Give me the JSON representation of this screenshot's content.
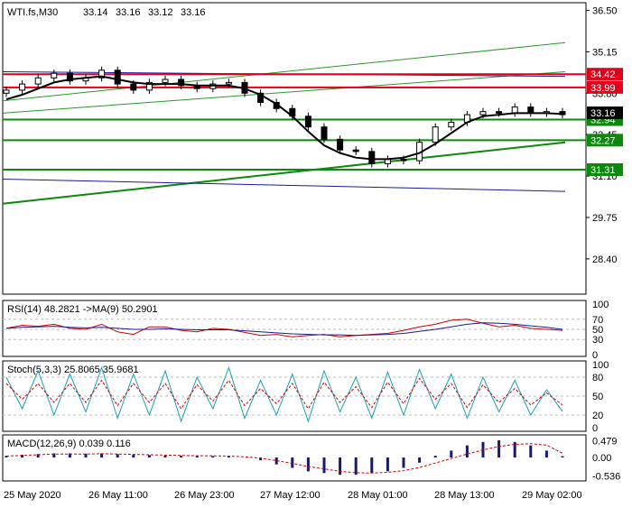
{
  "chart_data": {
    "type": "candlestick",
    "symbol": "WTI.fs",
    "timeframe": "M30",
    "ohlc_header": {
      "label": "WTI.fs,M30",
      "open": "33.14",
      "high": "33.16",
      "low": "33.12",
      "close": "33.16"
    },
    "x_ticks": [
      "25 May 2020",
      "26 May 11:00",
      "26 May 23:00",
      "27 May 12:00",
      "28 May 01:00",
      "28 May 13:00",
      "29 May 02:00"
    ],
    "price_axis": {
      "ticks": [
        "36.50",
        "35.15",
        "33.80",
        "32.45",
        "31.10",
        "29.75",
        "28.40"
      ],
      "tick_values": [
        36.5,
        35.15,
        33.8,
        32.45,
        31.1,
        29.75,
        28.4
      ],
      "ylim": [
        27.25,
        36.75
      ]
    },
    "levels": [
      {
        "value": 34.42,
        "label": "34.42",
        "color": "#e0001a"
      },
      {
        "value": 33.99,
        "label": "33.99",
        "color": "#e0001a"
      },
      {
        "value": 32.94,
        "label": "32.94",
        "color": "#0a8a0a"
      },
      {
        "value": 32.27,
        "label": "32.27",
        "color": "#0a8a0a"
      },
      {
        "value": 31.31,
        "label": "31.31",
        "color": "#0a8a0a"
      }
    ],
    "current_price": {
      "value": 33.16,
      "label": "33.16",
      "bg": "#000000"
    },
    "trend_lines": [
      {
        "x": [
          0,
          1
        ],
        "y": [
          33.55,
          35.45
        ],
        "color": "#2a9a2a",
        "width": 1
      },
      {
        "x": [
          0,
          1
        ],
        "y": [
          33.15,
          34.5
        ],
        "color": "#2a9a2a",
        "width": 1
      },
      {
        "x": [
          0,
          1
        ],
        "y": [
          30.2,
          32.2
        ],
        "color": "#0a8a0a",
        "width": 2
      },
      {
        "x": [
          0,
          1
        ],
        "y": [
          34.5,
          34.35
        ],
        "color": "#1a1a9a",
        "width": 1
      },
      {
        "x": [
          0,
          1
        ],
        "y": [
          31.0,
          30.6
        ],
        "color": "#1a1a9a",
        "width": 1
      }
    ],
    "close_series": [
      33.9,
      34.1,
      34.3,
      34.45,
      34.2,
      34.3,
      34.55,
      34.1,
      33.9,
      34.15,
      34.25,
      34.05,
      33.95,
      34.1,
      34.15,
      33.8,
      33.5,
      33.3,
      33.05,
      32.7,
      32.3,
      31.95,
      31.9,
      31.5,
      31.65,
      31.6,
      32.2,
      32.7,
      32.85,
      33.1,
      33.2,
      33.15,
      33.35,
      33.15,
      33.2,
      33.1
    ],
    "ma_series": [
      33.6,
      33.75,
      33.95,
      34.15,
      34.25,
      34.3,
      34.35,
      34.25,
      34.15,
      34.1,
      34.1,
      34.1,
      34.05,
      34.05,
      34.05,
      33.95,
      33.75,
      33.45,
      33.05,
      32.55,
      32.1,
      31.85,
      31.7,
      31.65,
      31.65,
      31.7,
      31.85,
      32.15,
      32.5,
      32.85,
      33.05,
      33.1,
      33.15,
      33.15,
      33.15,
      33.12
    ],
    "rsi": {
      "label": "RSI(14) 48.2821  ->MA(9) 50.2901",
      "ticks": [
        "70",
        "50",
        "30"
      ],
      "tick_values": [
        70,
        50,
        30
      ],
      "extra_ticks": [
        "100",
        "0"
      ],
      "extra_values": [
        100,
        0
      ],
      "values": [
        52,
        58,
        56,
        60,
        52,
        50,
        60,
        45,
        40,
        55,
        55,
        48,
        45,
        52,
        50,
        44,
        38,
        40,
        35,
        38,
        40,
        35,
        38,
        40,
        42,
        48,
        55,
        60,
        68,
        70,
        62,
        55,
        58,
        52,
        50,
        48
      ],
      "ma": [
        52,
        54,
        55,
        56,
        54,
        53,
        54,
        52,
        50,
        50,
        51,
        50,
        49,
        49,
        49,
        47,
        45,
        43,
        41,
        40,
        39,
        39,
        38,
        39,
        40,
        42,
        46,
        50,
        55,
        60,
        63,
        62,
        60,
        57,
        54,
        50
      ]
    },
    "stoch": {
      "label": "Stoch(5,3,3) 25.8065 35.9681",
      "ticks": [
        "80",
        "50",
        "20"
      ],
      "tick_values": [
        80,
        50,
        20
      ],
      "extra_ticks": [
        "100",
        "0"
      ],
      "extra_values": [
        100,
        0
      ],
      "main": [
        80,
        30,
        90,
        20,
        85,
        25,
        95,
        15,
        85,
        20,
        90,
        10,
        80,
        30,
        95,
        15,
        75,
        20,
        85,
        10,
        90,
        25,
        80,
        15,
        88,
        20,
        92,
        30,
        85,
        15,
        80,
        25,
        75,
        20,
        60,
        26
      ],
      "signal": [
        70,
        45,
        70,
        40,
        70,
        40,
        75,
        35,
        70,
        40,
        70,
        30,
        68,
        42,
        75,
        35,
        62,
        38,
        70,
        30,
        72,
        40,
        65,
        32,
        72,
        38,
        78,
        45,
        70,
        32,
        68,
        40,
        62,
        36,
        55,
        36
      ]
    },
    "macd": {
      "label": "MACD(12,26,9) 0.039 0.116",
      "ticks": [
        "0.479",
        "0.00",
        "-0.536"
      ],
      "tick_values": [
        0.479,
        0.0,
        -0.536
      ],
      "hist": [
        0.05,
        0.08,
        0.1,
        0.12,
        0.12,
        0.11,
        0.12,
        0.1,
        0.08,
        0.07,
        0.06,
        0.05,
        0.04,
        0.04,
        0.03,
        0.0,
        -0.08,
        -0.2,
        -0.3,
        -0.4,
        -0.45,
        -0.5,
        -0.5,
        -0.45,
        -0.4,
        -0.3,
        -0.15,
        0.05,
        0.2,
        0.35,
        0.45,
        0.5,
        0.45,
        0.35,
        0.2,
        0.04
      ],
      "signal": [
        0.04,
        0.06,
        0.08,
        0.1,
        0.1,
        0.1,
        0.11,
        0.1,
        0.09,
        0.08,
        0.07,
        0.06,
        0.05,
        0.05,
        0.04,
        0.02,
        -0.02,
        -0.09,
        -0.17,
        -0.26,
        -0.33,
        -0.4,
        -0.44,
        -0.45,
        -0.43,
        -0.38,
        -0.29,
        -0.16,
        -0.03,
        0.1,
        0.22,
        0.32,
        0.38,
        0.4,
        0.36,
        0.12
      ]
    }
  }
}
